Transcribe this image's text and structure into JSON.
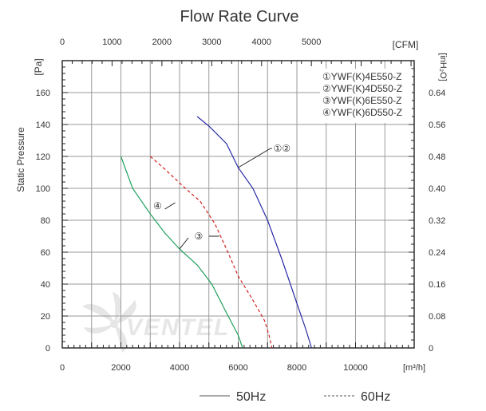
{
  "chart_data": {
    "type": "line",
    "title": "Flow Rate Curve",
    "ylabel": "Static Pressure",
    "x_bottom": {
      "unit": "[m³/h]",
      "range": [
        0,
        12000
      ],
      "ticks": [
        "0",
        "2000",
        "4000",
        "6000",
        "8000",
        "10000"
      ]
    },
    "x_top": {
      "unit": "[CFM]",
      "range": [
        0,
        7063
      ],
      "ticks": [
        "0",
        "1000",
        "2000",
        "3000",
        "4000",
        "5000"
      ]
    },
    "y_left": {
      "unit": "[Pa]",
      "range": [
        0,
        180
      ],
      "ticks": [
        "0",
        "20",
        "40",
        "60",
        "80",
        "100",
        "120",
        "140",
        "160"
      ]
    },
    "y_right": {
      "unit": "[inH₂O]",
      "range": [
        0,
        0.72
      ],
      "ticks": [
        "0",
        "0.08",
        "0.16",
        "0.24",
        "0.32",
        "0.40",
        "0.48",
        "0.56",
        "0.64"
      ]
    },
    "legend": {
      "position": "top-right",
      "entries": [
        "①YWF(K)4E550-Z",
        "②YWF(K)4D550-Z",
        "③YWF(K)6E550-Z",
        "④YWF(K)6D550-Z"
      ]
    },
    "bottom_legend": [
      {
        "label": "50Hz",
        "style": "solid"
      },
      {
        "label": "60Hz",
        "style": "dashed"
      }
    ],
    "watermark": "VENTEL",
    "series": [
      {
        "name": "①② 50Hz",
        "label": "①②",
        "style": "solid",
        "color": "#2a2aa8",
        "x": [
          4600,
          5000,
          5600,
          6000,
          6500,
          7000,
          7500,
          8000,
          8300,
          8500
        ],
        "y": [
          145,
          139,
          128,
          113,
          100,
          80,
          55,
          28,
          12,
          0
        ]
      },
      {
        "name": "④ 60Hz",
        "label": "④",
        "style": "dashed",
        "color": "#d42020",
        "x": [
          3000,
          3500,
          4200,
          4700,
          5200,
          5600,
          6000,
          6500,
          6900,
          7050,
          7150
        ],
        "y": [
          120,
          112,
          100,
          92,
          78,
          62,
          45,
          30,
          17,
          8,
          0
        ]
      },
      {
        "name": "③ 50Hz",
        "label": "③",
        "style": "solid",
        "color": "#1fa060",
        "x": [
          2000,
          2400,
          3000,
          3500,
          4000,
          4600,
          5100,
          5600,
          6000,
          6150
        ],
        "y": [
          120,
          100,
          84,
          72,
          62,
          52,
          40,
          22,
          8,
          0
        ]
      }
    ]
  }
}
